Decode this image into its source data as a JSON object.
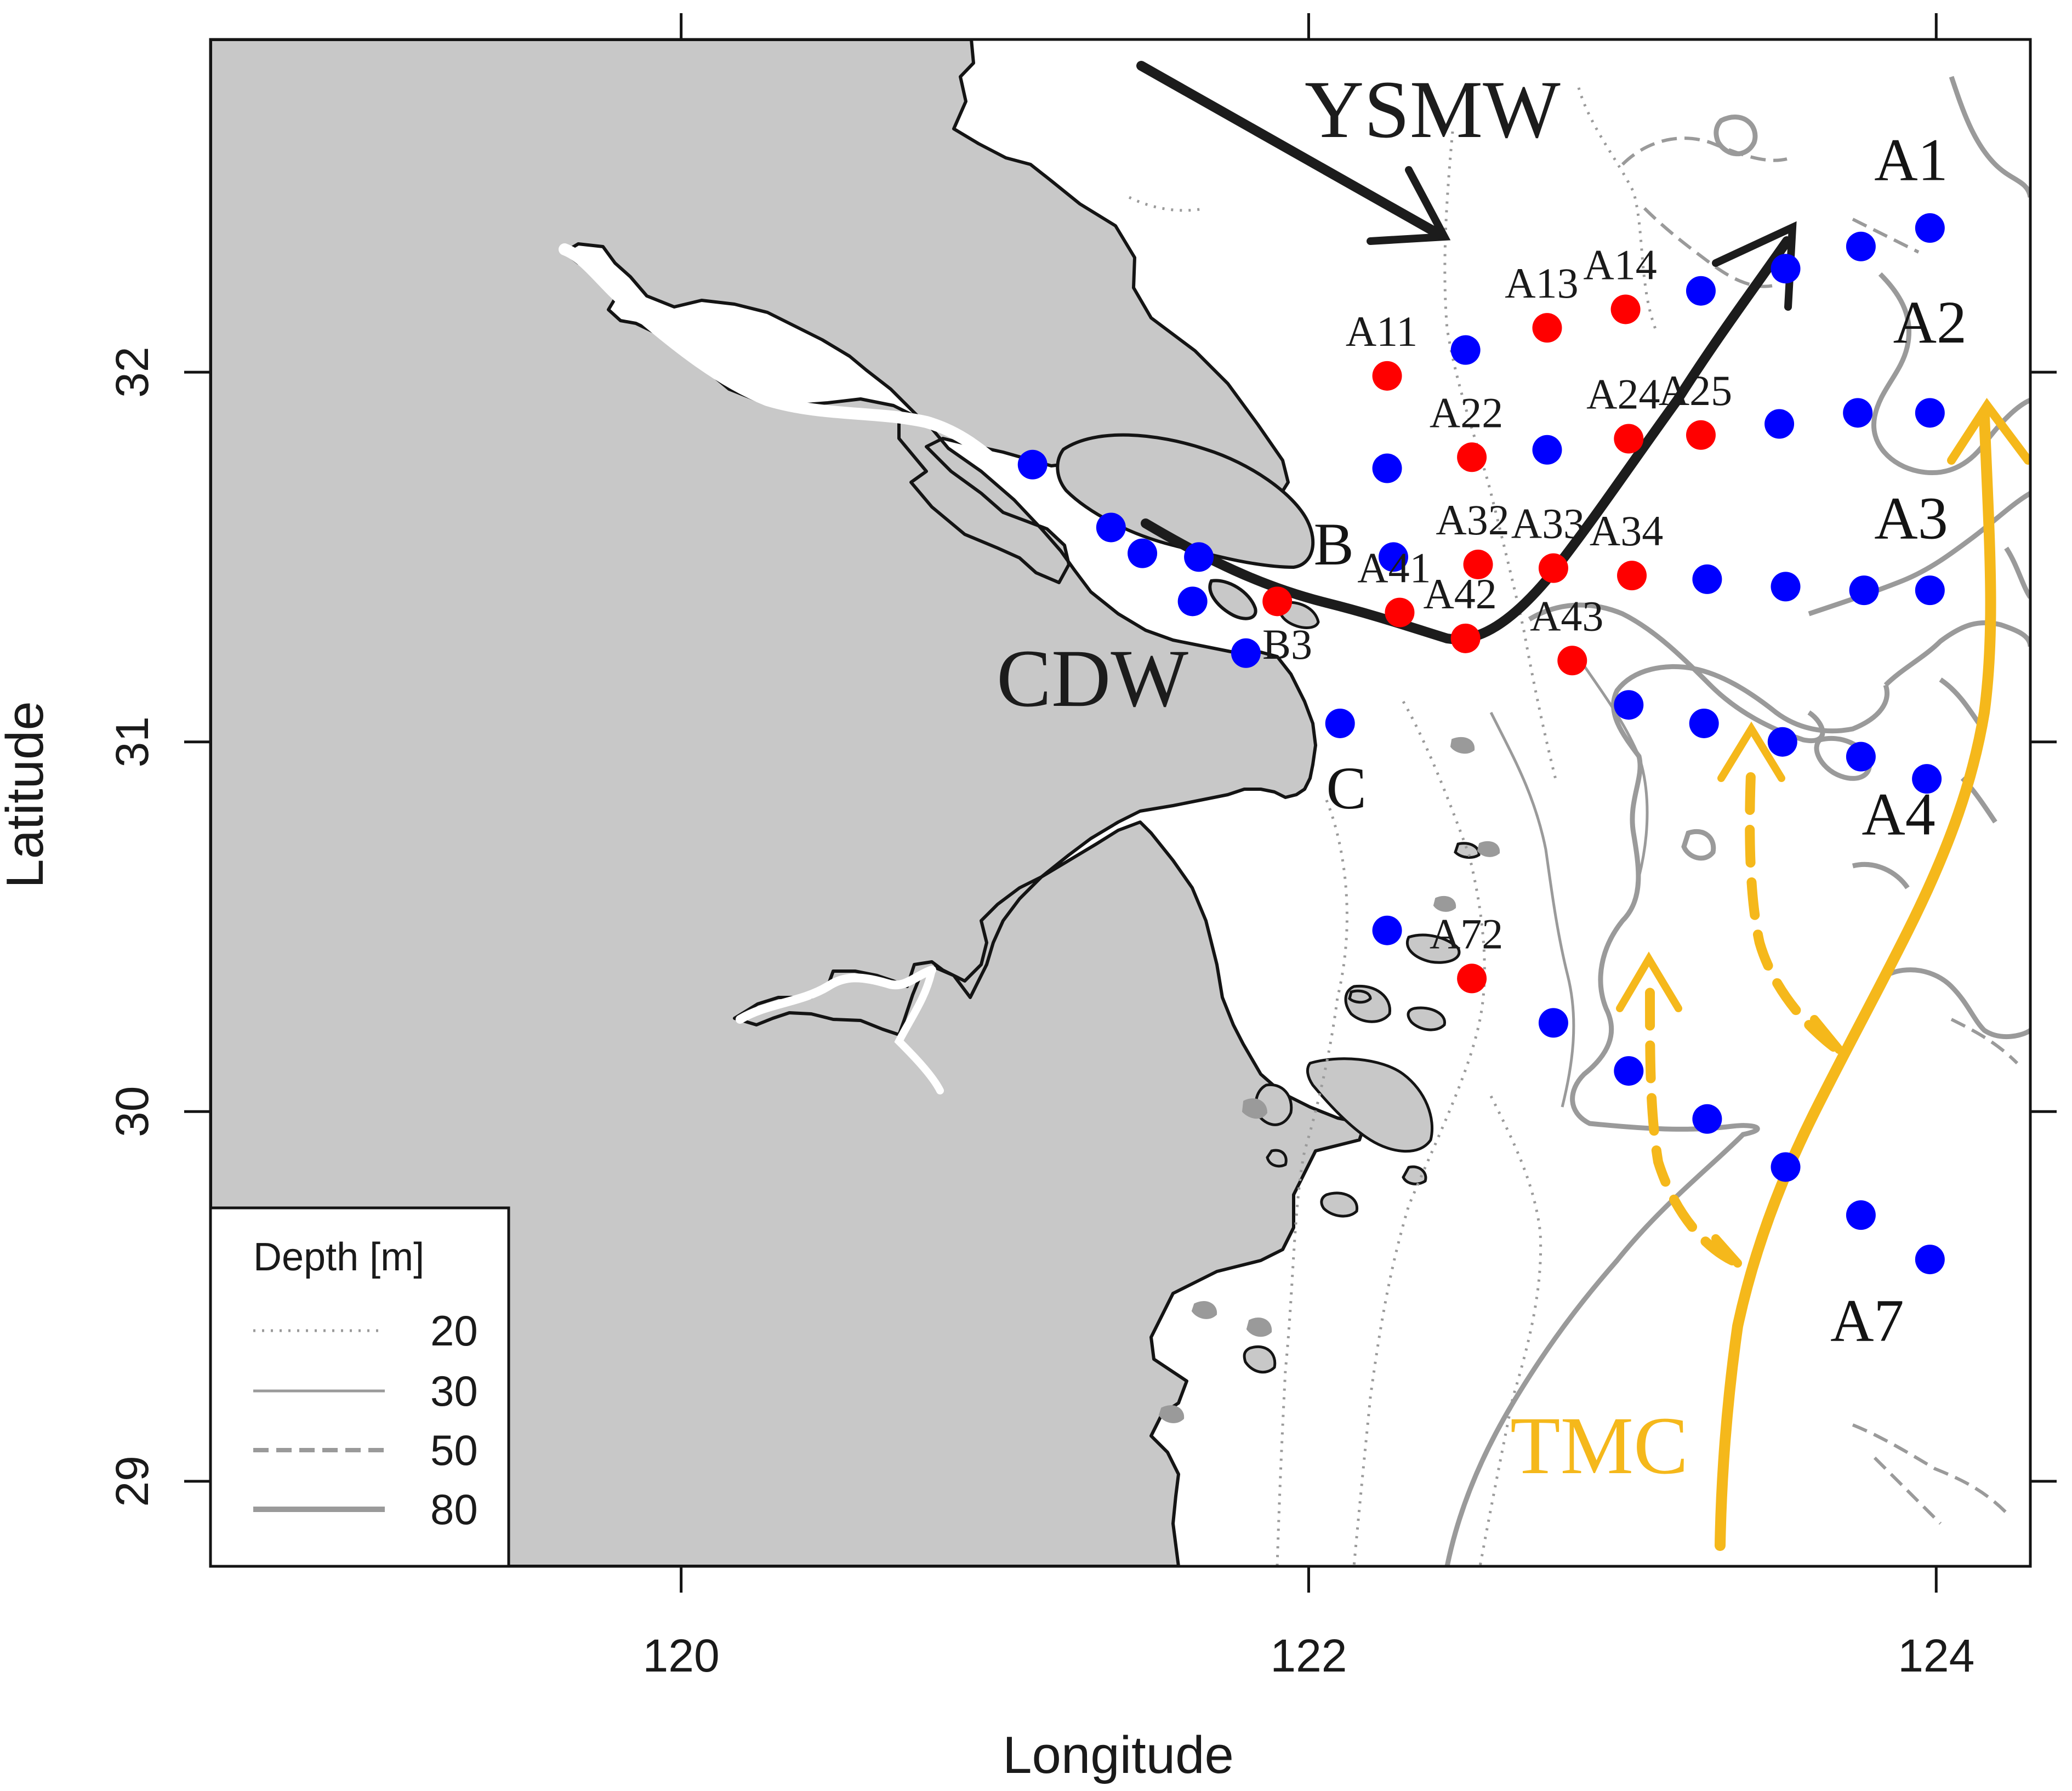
{
  "axes": {
    "xlabel": "Longitude",
    "ylabel": "Latitude",
    "xlim": [
      118.5,
      124.3
    ],
    "ylim": [
      28.77,
      32.9
    ],
    "xticks": [
      {
        "v": 120,
        "label": "120"
      },
      {
        "v": 122,
        "label": "122"
      },
      {
        "v": 124,
        "label": "124"
      }
    ],
    "yticks": [
      {
        "v": 29,
        "label": "29"
      },
      {
        "v": 30,
        "label": "30"
      },
      {
        "v": 31,
        "label": "31"
      },
      {
        "v": 32,
        "label": "32"
      }
    ]
  },
  "colors": {
    "land": "#c8c8c8",
    "coast": "#141414",
    "contour": "#9a9a9a",
    "station_red": "#ff0000",
    "station_blue": "#0000ff",
    "black_current": "#1c1c1c",
    "tmc": "#f5b81b"
  },
  "legend": {
    "title": "Depth [m]",
    "placement": "bottom-left",
    "items": [
      {
        "label": "20",
        "style": "dotted-thin"
      },
      {
        "label": "30",
        "style": "solid-thin"
      },
      {
        "label": "50",
        "style": "dashed-thick"
      },
      {
        "label": "80",
        "style": "solid-thick"
      }
    ]
  },
  "currents": [
    {
      "label": "YSMW",
      "color": "black"
    },
    {
      "label": "CDW",
      "color": "black"
    },
    {
      "label": "TMC",
      "color": "yellow"
    }
  ],
  "section_labels": [
    {
      "label": "A1",
      "lon": 123.92,
      "lat": 32.52
    },
    {
      "label": "A2",
      "lon": 123.98,
      "lat": 32.08
    },
    {
      "label": "A3",
      "lon": 123.92,
      "lat": 31.55
    },
    {
      "label": "A4",
      "lon": 123.88,
      "lat": 30.75
    },
    {
      "label": "A7",
      "lon": 123.78,
      "lat": 29.38
    },
    {
      "label": "B",
      "lon": 122.08,
      "lat": 31.48
    },
    {
      "label": "C",
      "lon": 122.12,
      "lat": 30.82
    }
  ],
  "stations": [
    {
      "lon": 121.12,
      "lat": 31.75,
      "type": "blue"
    },
    {
      "lon": 121.37,
      "lat": 31.58,
      "type": "blue"
    },
    {
      "lon": 121.47,
      "lat": 31.51,
      "type": "blue"
    },
    {
      "lon": 121.65,
      "lat": 31.5,
      "type": "blue"
    },
    {
      "lon": 121.63,
      "lat": 31.38,
      "type": "blue"
    },
    {
      "lon": 121.9,
      "lat": 31.38,
      "type": "red"
    },
    {
      "lon": 121.8,
      "lat": 31.24,
      "type": "blue",
      "label": "B3"
    },
    {
      "lon": 122.1,
      "lat": 31.05,
      "type": "blue"
    },
    {
      "lon": 122.25,
      "lat": 31.99,
      "type": "red",
      "label": "A11"
    },
    {
      "lon": 122.5,
      "lat": 32.06,
      "type": "blue"
    },
    {
      "lon": 122.76,
      "lat": 32.12,
      "type": "red",
      "label": "A13"
    },
    {
      "lon": 123.01,
      "lat": 32.17,
      "type": "red",
      "label": "A14"
    },
    {
      "lon": 123.25,
      "lat": 32.22,
      "type": "blue"
    },
    {
      "lon": 123.52,
      "lat": 32.28,
      "type": "blue"
    },
    {
      "lon": 123.76,
      "lat": 32.34,
      "type": "blue"
    },
    {
      "lon": 123.98,
      "lat": 32.39,
      "type": "blue"
    },
    {
      "lon": 122.25,
      "lat": 31.74,
      "type": "blue"
    },
    {
      "lon": 122.52,
      "lat": 31.77,
      "type": "red",
      "label": "A22"
    },
    {
      "lon": 122.76,
      "lat": 31.79,
      "type": "blue"
    },
    {
      "lon": 123.02,
      "lat": 31.82,
      "type": "red",
      "label": "A24"
    },
    {
      "lon": 123.25,
      "lat": 31.83,
      "type": "red",
      "label": "A25"
    },
    {
      "lon": 123.5,
      "lat": 31.86,
      "type": "blue"
    },
    {
      "lon": 123.75,
      "lat": 31.89,
      "type": "blue"
    },
    {
      "lon": 123.98,
      "lat": 31.89,
      "type": "blue"
    },
    {
      "lon": 122.27,
      "lat": 31.5,
      "type": "blue"
    },
    {
      "lon": 122.54,
      "lat": 31.48,
      "type": "red",
      "label": "A32"
    },
    {
      "lon": 122.78,
      "lat": 31.47,
      "type": "red",
      "label": "A33"
    },
    {
      "lon": 123.03,
      "lat": 31.45,
      "type": "red",
      "label": "A34"
    },
    {
      "lon": 123.27,
      "lat": 31.44,
      "type": "blue"
    },
    {
      "lon": 123.52,
      "lat": 31.42,
      "type": "blue"
    },
    {
      "lon": 123.77,
      "lat": 31.41,
      "type": "blue"
    },
    {
      "lon": 123.98,
      "lat": 31.41,
      "type": "blue"
    },
    {
      "lon": 122.29,
      "lat": 31.35,
      "type": "red",
      "label": "A41"
    },
    {
      "lon": 122.5,
      "lat": 31.28,
      "type": "red",
      "label": "A42"
    },
    {
      "lon": 122.84,
      "lat": 31.22,
      "type": "red",
      "label": "A43"
    },
    {
      "lon": 123.02,
      "lat": 31.1,
      "type": "blue"
    },
    {
      "lon": 123.26,
      "lat": 31.05,
      "type": "blue"
    },
    {
      "lon": 123.51,
      "lat": 31.0,
      "type": "blue"
    },
    {
      "lon": 123.76,
      "lat": 30.96,
      "type": "blue"
    },
    {
      "lon": 123.97,
      "lat": 30.9,
      "type": "blue"
    },
    {
      "lon": 122.25,
      "lat": 30.49,
      "type": "blue"
    },
    {
      "lon": 122.52,
      "lat": 30.36,
      "type": "red",
      "label": "A72"
    },
    {
      "lon": 122.78,
      "lat": 30.24,
      "type": "blue"
    },
    {
      "lon": 123.02,
      "lat": 30.11,
      "type": "blue"
    },
    {
      "lon": 123.27,
      "lat": 29.98,
      "type": "blue"
    },
    {
      "lon": 123.52,
      "lat": 29.85,
      "type": "blue"
    },
    {
      "lon": 123.76,
      "lat": 29.72,
      "type": "blue"
    },
    {
      "lon": 123.98,
      "lat": 29.6,
      "type": "blue"
    }
  ]
}
